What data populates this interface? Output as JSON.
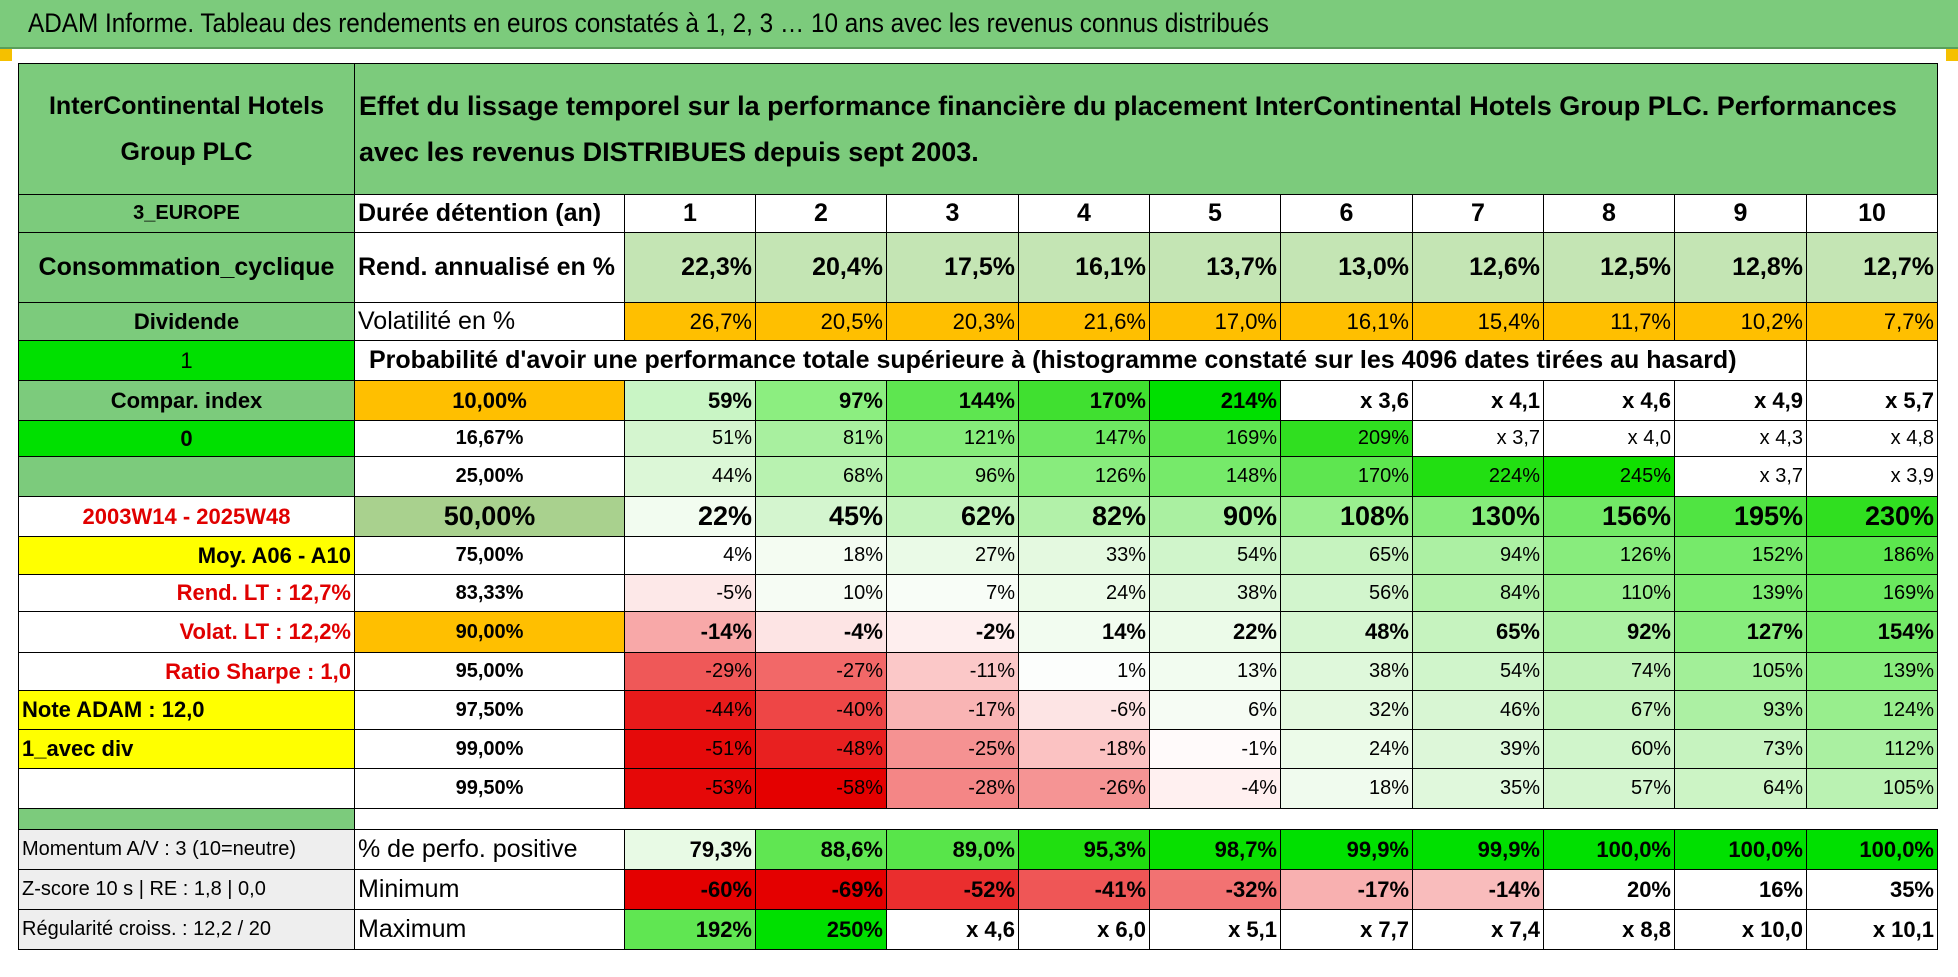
{
  "title": "ADAM Informe. Tableau des rendements en euros constatés à 1, 2, 3 … 10 ans avec les revenus connus distribués",
  "left_panel": {
    "name": "InterContinental Hotels Group PLC",
    "region": "3_EUROPE",
    "sector": "Consommation_cyclique",
    "type": "Dividende",
    "flag_1": "1",
    "compar_index": "Compar. index",
    "flag_0": "0",
    "period": "2003W14 - 2025W48",
    "moy": "Moy. A06 - A10",
    "rend_lt": "Rend. LT :    12,7%",
    "volat_lt": "Volat. LT :    12,2%",
    "sharpe": "Ratio Sharpe :     1,0",
    "note": "Note ADAM : 12,0",
    "avec_div": "1_avec div",
    "momentum": "Momentum A/V : 3 (10=neutre)",
    "zscore": "Z-score 10 s | RE : 1,8 | 0,0",
    "regularite": "Régularité croiss. : 12,2 / 20"
  },
  "description": "Effet du lissage temporel sur la performance financière du placement InterContinental Hotels Group PLC. Performances avec les revenus DISTRIBUES depuis sept 2003.",
  "header_label": "Durée détention (an)",
  "years": [
    "1",
    "2",
    "3",
    "4",
    "5",
    "6",
    "7",
    "8",
    "9",
    "10"
  ],
  "rend": {
    "label": "Rend. annualisé en %",
    "values": [
      "22,3%",
      "20,4%",
      "17,5%",
      "16,1%",
      "13,7%",
      "13,0%",
      "12,6%",
      "12,5%",
      "12,8%",
      "12,7%"
    ]
  },
  "volat": {
    "label": "Volatilité en %",
    "values": [
      "26,7%",
      "20,5%",
      "20,3%",
      "21,6%",
      "17,0%",
      "16,1%",
      "15,4%",
      "11,7%",
      "10,2%",
      "7,7%"
    ]
  },
  "prob_title": "Probabilité d'avoir une performance totale supérieure à (histogramme constaté sur les 4096 dates tirées au hasard)",
  "prob_rows": [
    {
      "p": "10,00%",
      "values": [
        "59%",
        "97%",
        "144%",
        "170%",
        "214%",
        "x 3,6",
        "x 4,1",
        "x 4,6",
        "x 4,9",
        "x 5,7"
      ]
    },
    {
      "p": "16,67%",
      "values": [
        "51%",
        "81%",
        "121%",
        "147%",
        "169%",
        "209%",
        "x 3,7",
        "x 4,0",
        "x 4,3",
        "x 4,8"
      ]
    },
    {
      "p": "25,00%",
      "values": [
        "44%",
        "68%",
        "96%",
        "126%",
        "148%",
        "170%",
        "224%",
        "245%",
        "x 3,7",
        "x 3,9"
      ]
    },
    {
      "p": "50,00%",
      "values": [
        "22%",
        "45%",
        "62%",
        "82%",
        "90%",
        "108%",
        "130%",
        "156%",
        "195%",
        "230%"
      ]
    },
    {
      "p": "75,00%",
      "values": [
        "4%",
        "18%",
        "27%",
        "33%",
        "54%",
        "65%",
        "94%",
        "126%",
        "152%",
        "186%"
      ]
    },
    {
      "p": "83,33%",
      "values": [
        "-5%",
        "10%",
        "7%",
        "24%",
        "38%",
        "56%",
        "84%",
        "110%",
        "139%",
        "169%"
      ]
    },
    {
      "p": "90,00%",
      "values": [
        "-14%",
        "-4%",
        "-2%",
        "14%",
        "22%",
        "48%",
        "65%",
        "92%",
        "127%",
        "154%"
      ]
    },
    {
      "p": "95,00%",
      "values": [
        "-29%",
        "-27%",
        "-11%",
        "1%",
        "13%",
        "38%",
        "54%",
        "74%",
        "105%",
        "139%"
      ]
    },
    {
      "p": "97,50%",
      "values": [
        "-44%",
        "-40%",
        "-17%",
        "-6%",
        "6%",
        "32%",
        "46%",
        "67%",
        "93%",
        "124%"
      ]
    },
    {
      "p": "99,00%",
      "values": [
        "-51%",
        "-48%",
        "-25%",
        "-18%",
        "-1%",
        "24%",
        "39%",
        "60%",
        "73%",
        "112%"
      ]
    },
    {
      "p": "99,50%",
      "values": [
        "-53%",
        "-58%",
        "-28%",
        "-26%",
        "-4%",
        "18%",
        "35%",
        "57%",
        "64%",
        "105%"
      ]
    }
  ],
  "bottom_rows": [
    {
      "label": "% de perfo. positive",
      "values": [
        "79,3%",
        "88,6%",
        "89,0%",
        "95,3%",
        "98,7%",
        "99,9%",
        "99,9%",
        "100,0%",
        "100,0%",
        "100,0%"
      ]
    },
    {
      "label": "Minimum",
      "values": [
        "-60%",
        "-69%",
        "-52%",
        "-41%",
        "-32%",
        "-17%",
        "-14%",
        "20%",
        "16%",
        "35%"
      ]
    },
    {
      "label": "Maximum",
      "values": [
        "192%",
        "250%",
        "x 4,6",
        "x 6,0",
        "x 5,1",
        "x 7,7",
        "x 7,4",
        "x 8,8",
        "x 10,0",
        "x 10,1"
      ]
    }
  ],
  "colors": {
    "header_green": "#7ccb7c",
    "bright_green": "#00e000",
    "orange": "#ffbf00",
    "yellow": "#ffff00",
    "red_text": "#e00000"
  }
}
